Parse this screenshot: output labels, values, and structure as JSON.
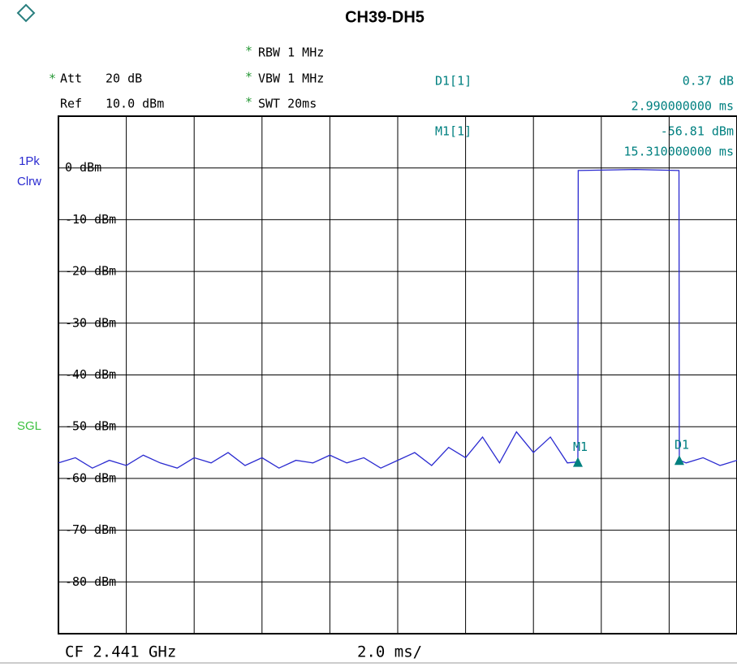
{
  "chart_data": {
    "type": "line",
    "title": "CH39-DH5",
    "settings": {
      "att_label": "Att",
      "att": "20 dB",
      "ref_label": "Ref",
      "ref": "10.0 dBm",
      "rbw": "RBW 1 MHz",
      "vbw": "VBW 1 MHz",
      "swt": "SWT 20ms"
    },
    "readout": {
      "d1_name": "D1[1]",
      "d1_level": "0.37 dB",
      "d1_time": "2.990000000 ms",
      "m1_name": "M1[1]",
      "m1_level": "-56.81 dBm",
      "m1_time": "15.310000000 ms"
    },
    "trace_labels": [
      "1Pk",
      "Clrw"
    ],
    "mode": "SGL",
    "footer": {
      "center": "CF 2.441 GHz",
      "scale": "2.0 ms/"
    },
    "xlim": [
      0,
      20
    ],
    "xticks": [
      0,
      2,
      4,
      6,
      8,
      10,
      12,
      14,
      16,
      18,
      20
    ],
    "ylim": [
      -90,
      10
    ],
    "yticks": [
      {
        "value": 0,
        "label": "0 dBm"
      },
      {
        "value": -10,
        "label": "-10 dBm"
      },
      {
        "value": -20,
        "label": "-20 dBm"
      },
      {
        "value": -30,
        "label": "-30 dBm"
      },
      {
        "value": -40,
        "label": "-40 dBm"
      },
      {
        "value": -50,
        "label": "-50 dBm"
      },
      {
        "value": -60,
        "label": "-60 dBm"
      },
      {
        "value": -70,
        "label": "-70 dBm"
      },
      {
        "value": -80,
        "label": "-80 dBm"
      }
    ],
    "grid": true,
    "series": [
      {
        "name": "1Pk Clrw",
        "color": "#2a2ad0",
        "x": [
          0,
          0.5,
          1,
          1.5,
          2,
          2.5,
          3,
          3.5,
          4,
          4.5,
          5,
          5.5,
          6,
          6.5,
          7,
          7.5,
          8,
          8.5,
          9,
          9.5,
          10,
          10.5,
          11,
          11.5,
          12,
          12.5,
          13,
          13.5,
          14,
          14.5,
          15,
          15.31,
          15.32,
          17,
          18.29,
          18.3,
          18.5,
          19,
          19.5,
          20
        ],
        "values": [
          -57,
          -56,
          -58,
          -56.5,
          -57.5,
          -55.5,
          -57,
          -58,
          -56,
          -57,
          -55,
          -57.5,
          -56,
          -58,
          -56.5,
          -57,
          -55.5,
          -57,
          -56,
          -58,
          -56.5,
          -55,
          -57.5,
          -54,
          -56,
          -52,
          -57,
          -51,
          -55,
          -52,
          -57,
          -56.81,
          -0.5,
          -0.3,
          -0.5,
          -56.44,
          -57,
          -56,
          -57.5,
          -56.5
        ]
      }
    ],
    "markers": [
      {
        "name": "M1",
        "x": 15.31,
        "y": -56.81,
        "color": "#008080"
      },
      {
        "name": "D1",
        "x": 18.3,
        "y": -56.44,
        "color": "#008080"
      }
    ]
  }
}
